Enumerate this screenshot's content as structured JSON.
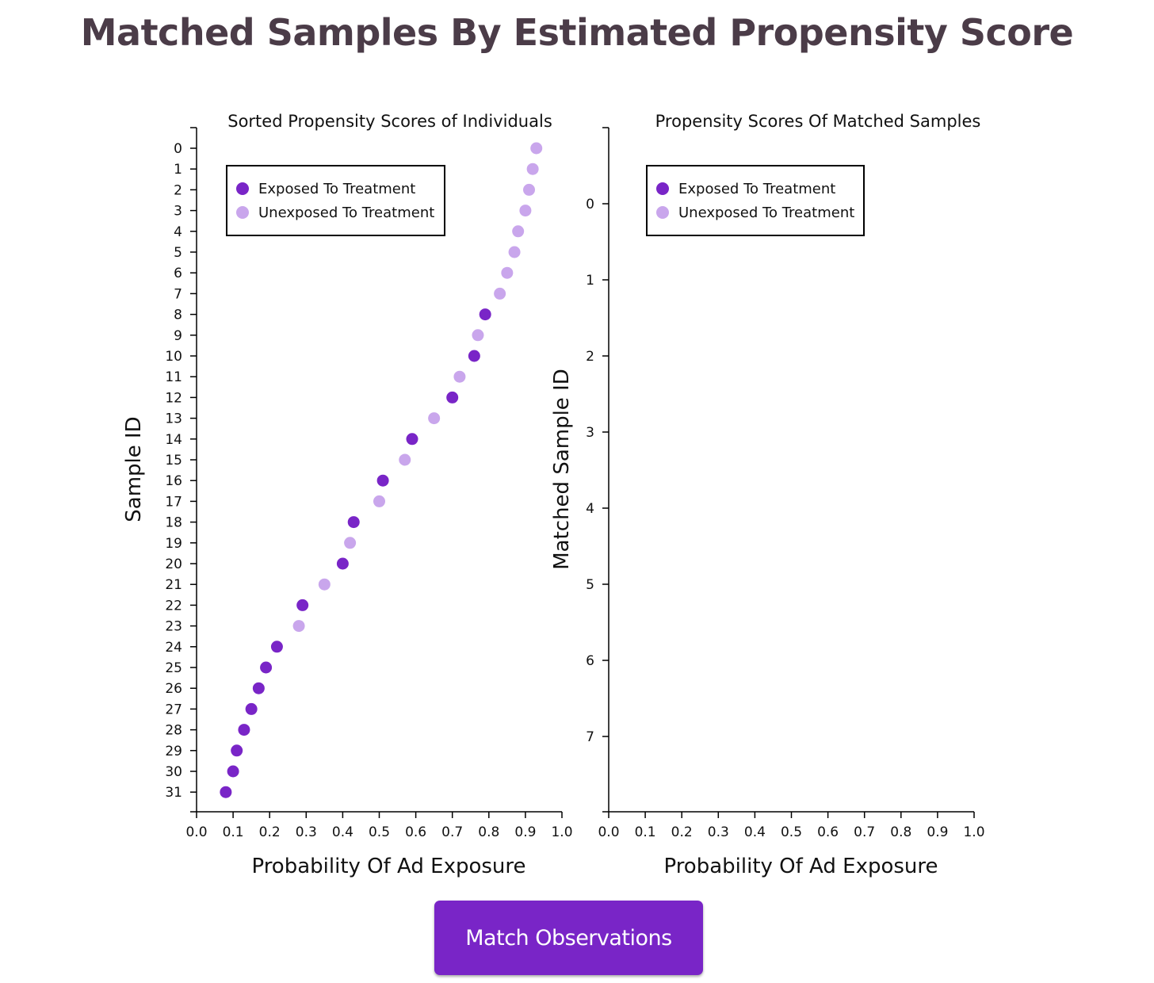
{
  "page": {
    "title": "Matched Samples By Estimated Propensity Score",
    "button_label": "Match Observations"
  },
  "colors": {
    "exposed": "#7925c7",
    "unexposed": "#c9a6ec",
    "button": "#7925c7",
    "title": "#4b3c48"
  },
  "chart_data": [
    {
      "type": "scatter",
      "title": "Sorted Propensity Scores of Individuals",
      "xlabel": "Probability Of Ad Exposure",
      "ylabel": "Sample ID",
      "xlim": [
        0,
        1
      ],
      "x_ticks": [
        "0.0",
        "0.1",
        "0.2",
        "0.3",
        "0.4",
        "0.5",
        "0.6",
        "0.7",
        "0.8",
        "0.9",
        "1.0"
      ],
      "y_ticks": [
        "0",
        "1",
        "2",
        "3",
        "4",
        "5",
        "6",
        "7",
        "8",
        "9",
        "10",
        "11",
        "12",
        "13",
        "14",
        "15",
        "16",
        "17",
        "18",
        "19",
        "20",
        "21",
        "22",
        "23",
        "24",
        "25",
        "26",
        "27",
        "28",
        "29",
        "30",
        "31"
      ],
      "legend": {
        "placement": "top-left",
        "entries": [
          "Exposed To Treatment",
          "Unexposed To Treatment"
        ]
      },
      "series": [
        {
          "name": "Exposed To Treatment",
          "points": [
            {
              "id": 8,
              "x": 0.79
            },
            {
              "id": 10,
              "x": 0.76
            },
            {
              "id": 12,
              "x": 0.7
            },
            {
              "id": 14,
              "x": 0.59
            },
            {
              "id": 16,
              "x": 0.51
            },
            {
              "id": 18,
              "x": 0.43
            },
            {
              "id": 20,
              "x": 0.4
            },
            {
              "id": 22,
              "x": 0.29
            },
            {
              "id": 24,
              "x": 0.22
            },
            {
              "id": 25,
              "x": 0.19
            },
            {
              "id": 26,
              "x": 0.17
            },
            {
              "id": 27,
              "x": 0.15
            },
            {
              "id": 28,
              "x": 0.13
            },
            {
              "id": 29,
              "x": 0.11
            },
            {
              "id": 30,
              "x": 0.1
            },
            {
              "id": 31,
              "x": 0.08
            }
          ]
        },
        {
          "name": "Unexposed To Treatment",
          "points": [
            {
              "id": 0,
              "x": 0.93
            },
            {
              "id": 1,
              "x": 0.92
            },
            {
              "id": 2,
              "x": 0.91
            },
            {
              "id": 3,
              "x": 0.9
            },
            {
              "id": 4,
              "x": 0.88
            },
            {
              "id": 5,
              "x": 0.87
            },
            {
              "id": 6,
              "x": 0.85
            },
            {
              "id": 7,
              "x": 0.83
            },
            {
              "id": 9,
              "x": 0.77
            },
            {
              "id": 11,
              "x": 0.72
            },
            {
              "id": 13,
              "x": 0.65
            },
            {
              "id": 15,
              "x": 0.57
            },
            {
              "id": 17,
              "x": 0.5
            },
            {
              "id": 19,
              "x": 0.42
            },
            {
              "id": 21,
              "x": 0.35
            },
            {
              "id": 23,
              "x": 0.28
            }
          ]
        }
      ]
    },
    {
      "type": "scatter",
      "title": "Propensity Scores Of Matched Samples",
      "xlabel": "Probability Of Ad Exposure",
      "ylabel": "Matched Sample ID",
      "xlim": [
        0,
        1
      ],
      "x_ticks": [
        "0.0",
        "0.1",
        "0.2",
        "0.3",
        "0.4",
        "0.5",
        "0.6",
        "0.7",
        "0.8",
        "0.9",
        "1.0"
      ],
      "y_ticks": [
        "0",
        "1",
        "2",
        "3",
        "4",
        "5",
        "6",
        "7"
      ],
      "legend": {
        "placement": "top-left",
        "entries": [
          "Exposed To Treatment",
          "Unexposed To Treatment"
        ]
      },
      "series": [
        {
          "name": "Exposed To Treatment",
          "points": []
        },
        {
          "name": "Unexposed To Treatment",
          "points": []
        }
      ]
    }
  ]
}
